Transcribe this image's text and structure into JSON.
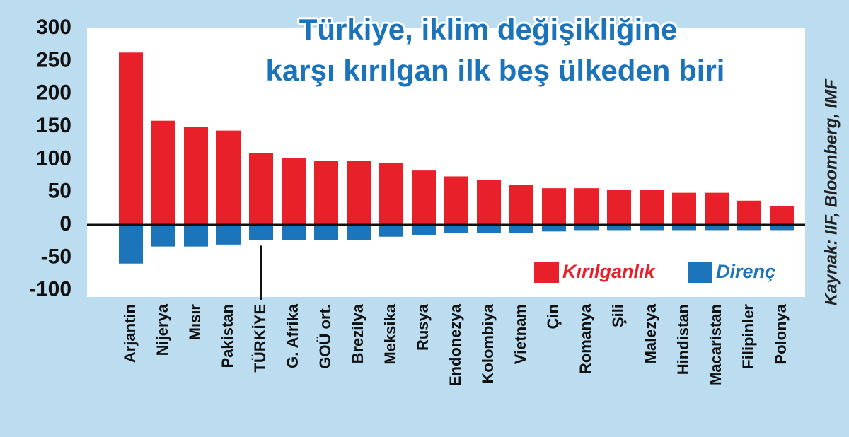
{
  "chart_data": {
    "type": "bar",
    "title_lines": [
      "Türkiye, iklim değişikliğine",
      "karşı kırılgan ilk beş ülkeden biri"
    ],
    "source": "Kaynak: IIF, Bloomberg, IMF",
    "categories": [
      "Arjantin",
      "Nijerya",
      "Mısır",
      "Pakistan",
      "TÜRKİYE",
      "G. Afrika",
      "GOÜ ort.",
      "Brezilya",
      "Meksika",
      "Rusya",
      "Endonezya",
      "Kolombiya",
      "Vietnam",
      "Çin",
      "Romanya",
      "Şili",
      "Malezya",
      "Hindistan",
      "Macaristan",
      "Filipinler",
      "Polonya"
    ],
    "series": [
      {
        "name": "Kırılganlık",
        "color": "#e8202a",
        "values": [
          263,
          159,
          149,
          144,
          110,
          102,
          98,
          98,
          95,
          83,
          74,
          69,
          61,
          56,
          56,
          53,
          53,
          49,
          49,
          37,
          29
        ]
      },
      {
        "name": "Direnç",
        "color": "#1c74bb",
        "values": [
          -59,
          -33,
          -33,
          -30,
          -23,
          -23,
          -23,
          -23,
          -18,
          -15,
          -12,
          -12,
          -12,
          -10,
          -8,
          -8,
          -8,
          -8,
          -8,
          -8,
          -8
        ]
      }
    ],
    "highlight_index": 4,
    "ylim": [
      -110,
      300
    ],
    "yticks": [
      300,
      250,
      200,
      150,
      100,
      50,
      0,
      -50,
      -100
    ],
    "grid": false,
    "legend": "lower right"
  }
}
